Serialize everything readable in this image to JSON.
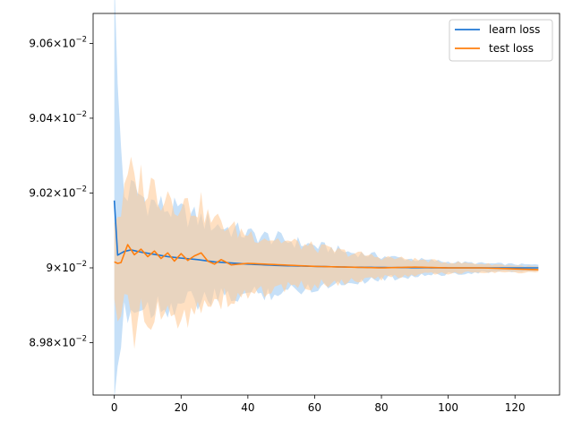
{
  "chart_data": {
    "type": "line",
    "title": "",
    "xlabel": "",
    "ylabel": "",
    "xlim": [
      -6.35,
      133.35
    ],
    "ylim": [
      0.08966,
      0.09068
    ],
    "grid": false,
    "legend_position": "top-right",
    "x_ticks": [
      0,
      20,
      40,
      60,
      80,
      100,
      120
    ],
    "y_ticks": [
      {
        "value": 0.0898,
        "mantissa": "8.98",
        "exponent": "−2"
      },
      {
        "value": 0.09,
        "mantissa": "9",
        "exponent": "−2"
      },
      {
        "value": 0.0902,
        "mantissa": "9.02",
        "exponent": "−2"
      },
      {
        "value": 0.0904,
        "mantissa": "9.04",
        "exponent": "−2"
      },
      {
        "value": 0.0906,
        "mantissa": "9.06",
        "exponent": "−2"
      }
    ],
    "x_points": 128,
    "series": [
      {
        "name": "learn loss",
        "color": "#1f77d4",
        "band_color": "#a8d0f5",
        "band_opacity": 0.65,
        "key_points": [
          [
            0,
            0.09018
          ],
          [
            1,
            0.090034
          ],
          [
            3,
            0.090044
          ],
          [
            5,
            0.090048
          ],
          [
            8,
            0.090042
          ],
          [
            12,
            0.090036
          ],
          [
            16,
            0.09003
          ],
          [
            20,
            0.090026
          ],
          [
            25,
            0.090022
          ],
          [
            30,
            0.090016
          ],
          [
            40,
            0.09001
          ],
          [
            50,
            0.090006
          ],
          [
            60,
            0.090004
          ],
          [
            70,
            0.090002
          ],
          [
            80,
            0.090001
          ],
          [
            100,
            0.09
          ],
          [
            127,
            0.09
          ]
        ],
        "band_half_width": [
          [
            0,
            0.00074
          ],
          [
            1,
            0.0004
          ],
          [
            3,
            0.00015
          ],
          [
            6,
            0.00016
          ],
          [
            10,
            0.00014
          ],
          [
            20,
            0.00012
          ],
          [
            30,
            0.0001
          ],
          [
            40,
            8e-05
          ],
          [
            50,
            7e-05
          ],
          [
            60,
            5.5e-05
          ],
          [
            70,
            4e-05
          ],
          [
            80,
            3e-05
          ],
          [
            90,
            2.2e-05
          ],
          [
            100,
            1.6e-05
          ],
          [
            110,
            1.2e-05
          ],
          [
            127,
            8e-06
          ]
        ]
      },
      {
        "name": "test loss",
        "color": "#ff7f0e",
        "band_color": "#ffcc99",
        "band_opacity": 0.6,
        "key_points": [
          [
            0,
            0.090016
          ],
          [
            1,
            0.090012
          ],
          [
            2,
            0.090014
          ],
          [
            4,
            0.090062
          ],
          [
            6,
            0.090035
          ],
          [
            8,
            0.09005
          ],
          [
            10,
            0.09003
          ],
          [
            12,
            0.090045
          ],
          [
            14,
            0.090025
          ],
          [
            16,
            0.09004
          ],
          [
            18,
            0.090018
          ],
          [
            20,
            0.090038
          ],
          [
            22,
            0.09002
          ],
          [
            24,
            0.090032
          ],
          [
            26,
            0.09004
          ],
          [
            28,
            0.090018
          ],
          [
            30,
            0.09001
          ],
          [
            32,
            0.090022
          ],
          [
            35,
            0.090008
          ],
          [
            40,
            0.090012
          ],
          [
            45,
            0.09001
          ],
          [
            50,
            0.090008
          ],
          [
            60,
            0.090004
          ],
          [
            70,
            0.090002
          ],
          [
            80,
            0.09
          ],
          [
            90,
            0.090002
          ],
          [
            100,
            0.09
          ],
          [
            110,
            0.09
          ],
          [
            127,
            0.089995
          ]
        ],
        "band_half_width": [
          [
            0,
            0.00012
          ],
          [
            3,
            0.00015
          ],
          [
            5,
            0.0002
          ],
          [
            10,
            0.00018
          ],
          [
            15,
            0.00017
          ],
          [
            20,
            0.00015
          ],
          [
            25,
            0.00013
          ],
          [
            30,
            0.00011
          ],
          [
            40,
            8e-05
          ],
          [
            50,
            6.5e-05
          ],
          [
            60,
            5e-05
          ],
          [
            70,
            3.8e-05
          ],
          [
            80,
            2.8e-05
          ],
          [
            90,
            2e-05
          ],
          [
            100,
            1.5e-05
          ],
          [
            110,
            1.1e-05
          ],
          [
            127,
            8e-06
          ]
        ]
      }
    ]
  }
}
